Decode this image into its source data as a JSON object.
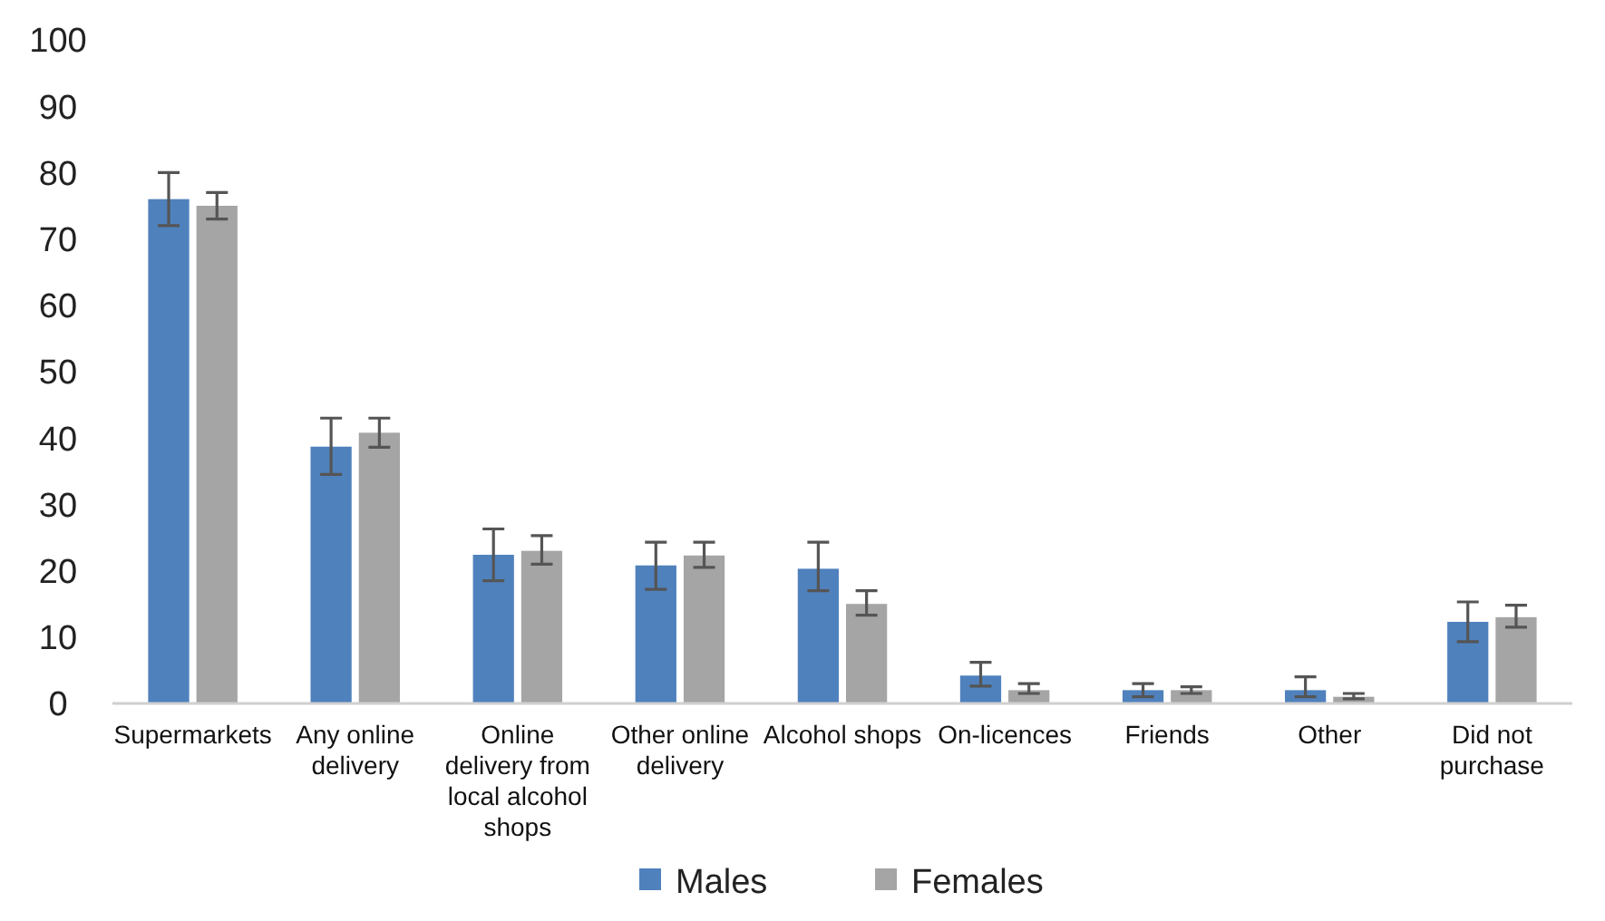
{
  "chart_data": {
    "type": "bar",
    "categories": [
      "Supermarkets",
      "Any online delivery",
      "Online delivery from local alcohol shops",
      "Other online delivery",
      "Alcohol shops",
      "On-licences",
      "Friends",
      "Other",
      "Did not purchase"
    ],
    "series": [
      {
        "name": "Males",
        "color": "#4f81bd",
        "values": [
          76,
          38.7,
          22.4,
          20.8,
          20.3,
          4.2,
          2,
          2,
          12.3
        ],
        "errors": [
          [
            72,
            80
          ],
          [
            34.5,
            43
          ],
          [
            18.5,
            26.3
          ],
          [
            17.2,
            24.3
          ],
          [
            17,
            24.3
          ],
          [
            2.6,
            6.2
          ],
          [
            1,
            3
          ],
          [
            1,
            4
          ],
          [
            9.3,
            15.3
          ]
        ]
      },
      {
        "name": "Females",
        "color": "#a5a5a5",
        "values": [
          75,
          40.8,
          23,
          22.3,
          15,
          2,
          2,
          1,
          13
        ],
        "errors": [
          [
            73,
            77
          ],
          [
            38.6,
            43
          ],
          [
            21,
            25.3
          ],
          [
            20.5,
            24.3
          ],
          [
            13.3,
            17
          ],
          [
            1.5,
            3
          ],
          [
            1.5,
            2.5
          ],
          [
            0.7,
            1.5
          ],
          [
            11.5,
            14.8
          ]
        ]
      }
    ],
    "ylim": [
      0,
      100
    ],
    "yticks": [
      0,
      10,
      20,
      30,
      40,
      50,
      60,
      70,
      80,
      90,
      100
    ],
    "legend": "bottom",
    "grid": false
  }
}
